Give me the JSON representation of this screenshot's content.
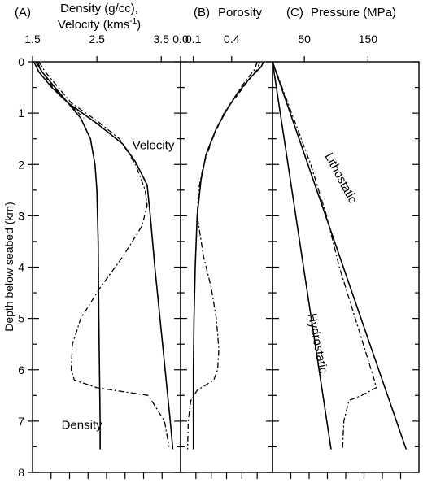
{
  "y_axis": {
    "label": "Depth below seabed (km)",
    "min": 0,
    "max": 8,
    "ticks": [
      0,
      1,
      2,
      3,
      4,
      5,
      6,
      7,
      8
    ]
  },
  "chart_data": [
    {
      "type": "line",
      "panel_label": "(A)",
      "title": "Density (g/cc),",
      "title2_prefix": "Velocity (kms",
      "title2_sup": "-1",
      "title2_suffix": ")",
      "xlim": [
        1.5,
        3.8
      ],
      "xticks": [
        1.5,
        2.5,
        3.5
      ],
      "xtick_labels": [
        "1.5",
        "2.5",
        "3.5"
      ],
      "ylim": [
        0,
        8
      ],
      "annotations": [
        {
          "text": "Velocity",
          "x": 3.05,
          "y": 1.7
        },
        {
          "text": "Density",
          "x": 1.95,
          "y": 7.15
        }
      ],
      "series": [
        {
          "style": "solid",
          "name": "Velocity",
          "points": [
            [
              1.52,
              0
            ],
            [
              1.6,
              0.2
            ],
            [
              1.8,
              0.5
            ],
            [
              2.05,
              0.8
            ],
            [
              2.5,
              1.2
            ],
            [
              2.9,
              1.6
            ],
            [
              3.1,
              1.95
            ],
            [
              3.28,
              2.4
            ],
            [
              3.33,
              3.0
            ],
            [
              3.4,
              4.0
            ],
            [
              3.48,
              5.0
            ],
            [
              3.56,
              6.0
            ],
            [
              3.64,
              7.0
            ],
            [
              3.68,
              7.55
            ]
          ]
        },
        {
          "style": "solid",
          "name": "Density",
          "points": [
            [
              1.55,
              0
            ],
            [
              1.65,
              0.2
            ],
            [
              1.85,
              0.5
            ],
            [
              2.05,
              0.8
            ],
            [
              2.25,
              1.1
            ],
            [
              2.4,
              1.5
            ],
            [
              2.47,
              2.0
            ],
            [
              2.5,
              2.5
            ],
            [
              2.52,
              3.5
            ],
            [
              2.53,
              5.0
            ],
            [
              2.54,
              6.0
            ],
            [
              2.55,
              7.0
            ],
            [
              2.55,
              7.55
            ]
          ]
        },
        {
          "style": "dashdot",
          "points": [
            [
              1.6,
              0
            ],
            [
              1.7,
              0.2
            ],
            [
              1.9,
              0.5
            ],
            [
              2.1,
              0.8
            ],
            [
              2.5,
              1.15
            ],
            [
              2.85,
              1.5
            ],
            [
              3.1,
              2.0
            ],
            [
              3.25,
              2.5
            ],
            [
              3.28,
              2.8
            ],
            [
              3.2,
              3.2
            ],
            [
              2.9,
              3.8
            ],
            [
              2.55,
              4.4
            ],
            [
              2.25,
              5.0
            ],
            [
              2.12,
              5.5
            ],
            [
              2.1,
              6.0
            ],
            [
              2.15,
              6.2
            ],
            [
              2.5,
              6.35
            ],
            [
              3.3,
              6.5
            ],
            [
              3.55,
              7.0
            ],
            [
              3.62,
              7.5
            ]
          ]
        },
        {
          "style": "dashed",
          "points": [
            [
              1.58,
              0
            ],
            [
              1.65,
              0.2
            ],
            [
              1.82,
              0.5
            ],
            [
              2.05,
              0.8
            ],
            [
              2.3,
              1.1
            ]
          ]
        }
      ]
    },
    {
      "type": "line",
      "panel_label": "(B)",
      "title": "Porosity",
      "xlim": [
        0.0,
        0.72
      ],
      "xticks": [
        0.0,
        0.1,
        0.4
      ],
      "xtick_labels": [
        "0.0",
        "0.1",
        "0.4"
      ],
      "ylim": [
        0,
        8
      ],
      "series": [
        {
          "style": "solid",
          "points": [
            [
              0.65,
              0
            ],
            [
              0.63,
              0.1
            ],
            [
              0.55,
              0.3
            ],
            [
              0.45,
              0.6
            ],
            [
              0.37,
              0.9
            ],
            [
              0.28,
              1.3
            ],
            [
              0.2,
              1.8
            ],
            [
              0.16,
              2.3
            ],
            [
              0.13,
              3.0
            ],
            [
              0.115,
              4.0
            ],
            [
              0.105,
              5.0
            ],
            [
              0.1,
              6.0
            ],
            [
              0.1,
              7.0
            ],
            [
              0.1,
              7.55
            ]
          ]
        },
        {
          "style": "dashdot",
          "points": [
            [
              0.6,
              0
            ],
            [
              0.58,
              0.15
            ],
            [
              0.5,
              0.4
            ],
            [
              0.42,
              0.7
            ],
            [
              0.34,
              1.0
            ],
            [
              0.25,
              1.5
            ],
            [
              0.18,
              2.0
            ],
            [
              0.14,
              2.5
            ],
            [
              0.13,
              3.0
            ],
            [
              0.18,
              3.8
            ],
            [
              0.24,
              4.4
            ],
            [
              0.28,
              5.0
            ],
            [
              0.3,
              5.6
            ],
            [
              0.29,
              6.0
            ],
            [
              0.26,
              6.2
            ],
            [
              0.13,
              6.4
            ],
            [
              0.08,
              6.6
            ],
            [
              0.06,
              7.0
            ],
            [
              0.055,
              7.55
            ]
          ]
        },
        {
          "style": "dashed",
          "points": [
            [
              0.62,
              0
            ],
            [
              0.6,
              0.15
            ],
            [
              0.52,
              0.4
            ],
            [
              0.43,
              0.7
            ]
          ]
        }
      ]
    },
    {
      "type": "line",
      "panel_label": "(C)",
      "title": "Pressure (MPa)",
      "xlim": [
        0,
        230
      ],
      "xticks": [
        50,
        150
      ],
      "xtick_labels": [
        "50",
        "150"
      ],
      "ylim": [
        0,
        8
      ],
      "annotations": [
        {
          "text": "Lithostatic",
          "x": 102,
          "y": 2.3,
          "angle": 62
        },
        {
          "text": "Hydrostatic",
          "x": 65,
          "y": 5.5,
          "angle": 79
        }
      ],
      "series": [
        {
          "style": "solid",
          "name": "Lithostatic",
          "points": [
            [
              0,
              0
            ],
            [
              210,
              7.55
            ]
          ]
        },
        {
          "style": "solid",
          "name": "Hydrostatic",
          "points": [
            [
              0,
              0
            ],
            [
              92,
              7.55
            ]
          ]
        },
        {
          "style": "dashdot",
          "points": [
            [
              0,
              0
            ],
            [
              30,
              1.0
            ],
            [
              60,
              2.0
            ],
            [
              85,
              3.0
            ],
            [
              95,
              3.5
            ],
            [
              105,
              4.0
            ],
            [
              120,
              4.6
            ],
            [
              135,
              5.2
            ],
            [
              150,
              5.8
            ],
            [
              160,
              6.2
            ],
            [
              163,
              6.35
            ],
            [
              140,
              6.5
            ],
            [
              120,
              6.6
            ],
            [
              112,
              7.0
            ],
            [
              110,
              7.55
            ]
          ]
        }
      ]
    }
  ]
}
